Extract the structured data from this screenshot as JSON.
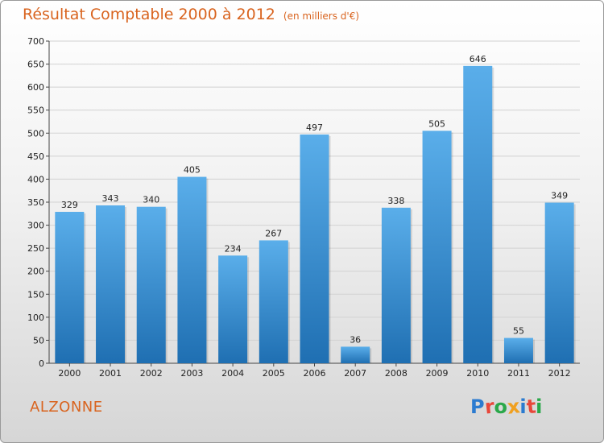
{
  "title": "Résultat Comptable 2000 à 2012",
  "subtitle": "(en milliers d'€)",
  "town": "ALZONNE",
  "logo": {
    "text": "Proxiti",
    "colors": [
      "#2b7bd0",
      "#e8473a",
      "#2aa84a",
      "#f0a020",
      "#2b7bd0",
      "#e8473a",
      "#2aa84a"
    ]
  },
  "colors": {
    "bar_top": "#5aaeea",
    "bar_bottom": "#1f6fb2",
    "accent": "#d9641f"
  },
  "chart_data": {
    "type": "bar",
    "title": "Résultat Comptable 2000 à 2012",
    "ylabel": "en milliers d'€",
    "xlabel": "",
    "categories": [
      "2000",
      "2001",
      "2002",
      "2003",
      "2004",
      "2005",
      "2006",
      "2007",
      "2008",
      "2009",
      "2010",
      "2011",
      "2012"
    ],
    "values": [
      329,
      343,
      340,
      405,
      234,
      267,
      497,
      36,
      338,
      505,
      646,
      55,
      349
    ],
    "ylim": [
      0,
      700
    ],
    "yticks": [
      0,
      50,
      100,
      150,
      200,
      250,
      300,
      350,
      400,
      450,
      500,
      550,
      600,
      650,
      700
    ],
    "grid": true
  }
}
